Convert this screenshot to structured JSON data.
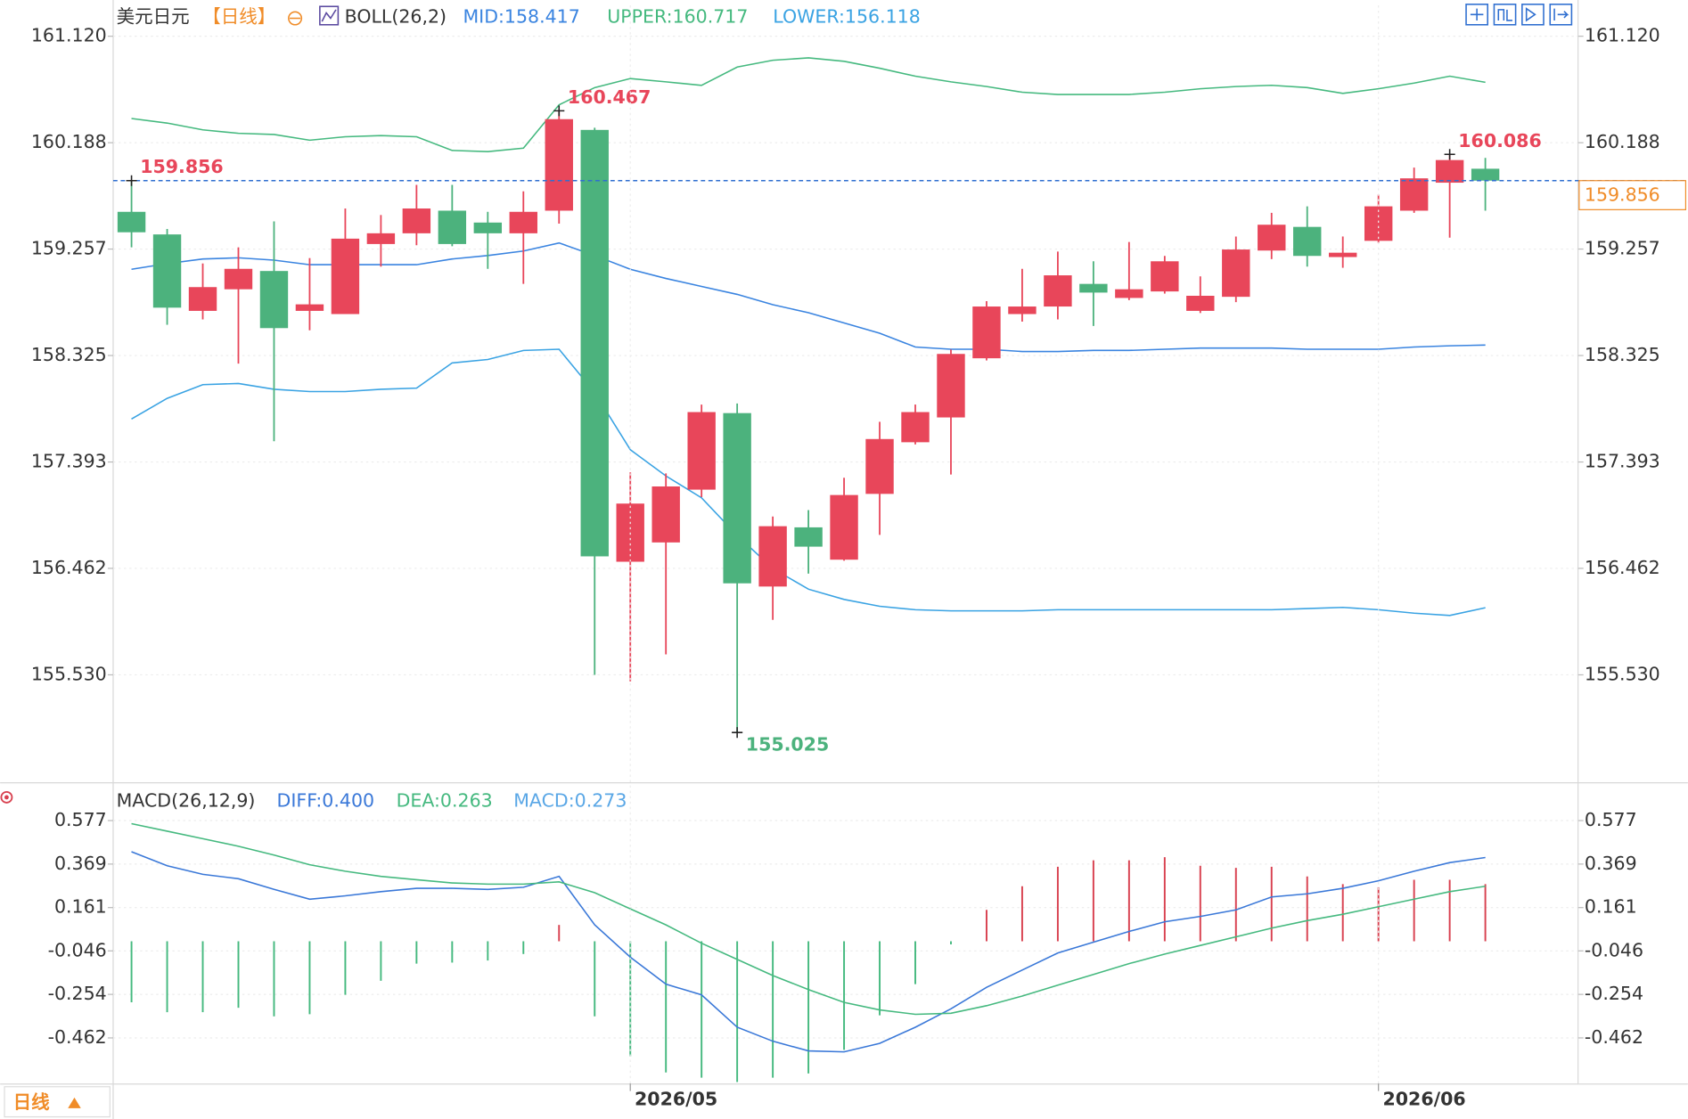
{
  "chart_data": [
    {
      "type": "candlestick",
      "title": "美元日元",
      "period": "【日线】",
      "indicator": "BOLL(26,2)",
      "up_color": "#e8465a",
      "down_color": "#4cb27d",
      "open": [
        159.583,
        159.385,
        158.716,
        158.905,
        159.065,
        158.716,
        158.688,
        159.301,
        159.395,
        159.593,
        159.489,
        159.395,
        159.593,
        160.3,
        156.52,
        156.689,
        157.151,
        157.821,
        156.303,
        156.821,
        156.538,
        157.114,
        157.566,
        157.783,
        158.301,
        158.688,
        158.754,
        158.952,
        158.829,
        158.886,
        158.716,
        158.839,
        159.244,
        159.451,
        159.187,
        159.329,
        159.593,
        159.838,
        159.96
      ],
      "high": [
        159.856,
        159.433,
        159.131,
        159.272,
        159.499,
        159.178,
        159.612,
        159.555,
        159.819,
        159.819,
        159.583,
        159.762,
        160.467,
        160.319,
        157.302,
        157.293,
        157.896,
        157.905,
        156.916,
        156.972,
        157.255,
        157.745,
        157.896,
        158.377,
        158.801,
        159.084,
        159.235,
        159.15,
        159.319,
        159.197,
        159.018,
        159.367,
        159.574,
        159.631,
        159.367,
        159.734,
        159.97,
        160.086,
        160.055
      ],
      "low": [
        159.272,
        158.594,
        158.641,
        158.254,
        157.575,
        158.546,
        158.688,
        159.103,
        159.291,
        159.282,
        159.084,
        158.952,
        159.48,
        155.53,
        155.473,
        155.709,
        157.085,
        155.025,
        156.011,
        156.416,
        156.529,
        156.755,
        157.547,
        157.283,
        158.282,
        158.622,
        158.641,
        158.584,
        158.81,
        158.867,
        158.697,
        158.792,
        159.169,
        159.103,
        159.093,
        159.31,
        159.574,
        159.357,
        159.593
      ],
      "close": [
        159.404,
        158.744,
        158.924,
        159.084,
        158.565,
        158.773,
        159.348,
        159.395,
        159.612,
        159.301,
        159.395,
        159.583,
        160.394,
        156.567,
        157.029,
        157.179,
        157.83,
        156.331,
        156.831,
        156.652,
        157.104,
        157.594,
        157.83,
        158.339,
        158.754,
        158.754,
        159.027,
        158.876,
        158.905,
        159.15,
        158.848,
        159.253,
        159.47,
        159.197,
        159.225,
        159.631,
        159.876,
        160.036,
        159.856
      ],
      "series": [
        {
          "name": "MID:158.417",
          "color": "#3a84e0",
          "values": [
            159.08,
            159.13,
            159.17,
            159.18,
            159.16,
            159.12,
            159.12,
            159.12,
            159.12,
            159.17,
            159.2,
            159.24,
            159.31,
            159.2,
            159.08,
            159.0,
            158.93,
            158.86,
            158.77,
            158.7,
            158.61,
            158.52,
            158.4,
            158.38,
            158.38,
            158.36,
            158.36,
            158.37,
            158.37,
            158.38,
            158.39,
            158.39,
            158.39,
            158.38,
            158.38,
            158.38,
            158.4,
            158.41,
            158.417
          ]
        },
        {
          "name": "UPPER:160.717",
          "color": "#45b97f",
          "values": [
            160.4,
            160.36,
            160.3,
            160.27,
            160.26,
            160.21,
            160.24,
            160.25,
            160.24,
            160.12,
            160.11,
            160.14,
            160.52,
            160.67,
            160.75,
            160.72,
            160.69,
            160.85,
            160.91,
            160.93,
            160.9,
            160.84,
            160.77,
            160.72,
            160.68,
            160.63,
            160.61,
            160.61,
            160.61,
            160.63,
            160.66,
            160.68,
            160.69,
            160.67,
            160.62,
            160.66,
            160.71,
            160.77,
            160.717
          ]
        },
        {
          "name": "LOWER:156.118",
          "color": "#3aa3e3",
          "values": [
            157.77,
            157.95,
            158.07,
            158.08,
            158.03,
            158.01,
            158.01,
            158.03,
            158.04,
            158.26,
            158.29,
            158.37,
            158.38,
            158.0,
            157.5,
            157.27,
            157.08,
            156.75,
            156.46,
            156.28,
            156.19,
            156.13,
            156.1,
            156.09,
            156.09,
            156.09,
            156.1,
            156.1,
            156.1,
            156.1,
            156.1,
            156.1,
            156.1,
            156.11,
            156.12,
            156.1,
            156.07,
            156.05,
            156.118
          ]
        }
      ],
      "ylim": [
        154.59,
        161.39
      ],
      "yticks": [
        {
          "value": 161.12,
          "label": "161.120"
        },
        160.188,
        159.257,
        158.325,
        157.393,
        156.462,
        {
          "value": 155.53,
          "label": "155.530"
        }
      ],
      "grid": true,
      "period_button": "日线"
    },
    {
      "type": "combo",
      "title": "MACD(26,12,9)",
      "up_color": "#d8404f",
      "down_color": "#45b97f",
      "categories": [
        null,
        null,
        null,
        null,
        null,
        null,
        null,
        null,
        null,
        null,
        null,
        null,
        null,
        null,
        "2026/05",
        null,
        null,
        null,
        null,
        null,
        null,
        null,
        null,
        null,
        null,
        null,
        null,
        null,
        null,
        null,
        null,
        null,
        null,
        null,
        null,
        "2026/06",
        null,
        null,
        null
      ],
      "series": [
        {
          "name": "DIFF:0.400",
          "color": "#3a78d8",
          "values": [
            0.428,
            0.361,
            0.32,
            0.299,
            0.248,
            0.201,
            0.217,
            0.237,
            0.253,
            0.253,
            0.248,
            0.258,
            0.31,
            0.078,
            -0.076,
            -0.205,
            -0.256,
            -0.411,
            -0.478,
            -0.524,
            -0.529,
            -0.488,
            -0.411,
            -0.323,
            -0.22,
            -0.138,
            -0.056,
            -0.004,
            0.047,
            0.093,
            0.119,
            0.15,
            0.212,
            0.227,
            0.253,
            0.289,
            0.335,
            0.376,
            0.4
          ]
        },
        {
          "name": "DEA:0.263",
          "color": "#45b97f",
          "values": [
            0.562,
            0.526,
            0.49,
            0.454,
            0.412,
            0.366,
            0.335,
            0.31,
            0.294,
            0.279,
            0.273,
            0.273,
            0.284,
            0.232,
            0.155,
            0.078,
            -0.009,
            -0.087,
            -0.164,
            -0.231,
            -0.292,
            -0.328,
            -0.349,
            -0.344,
            -0.308,
            -0.262,
            -0.21,
            -0.159,
            -0.107,
            -0.061,
            -0.02,
            0.021,
            0.063,
            0.099,
            0.129,
            0.165,
            0.201,
            0.237,
            0.263
          ]
        },
        {
          "name": "MACD:0.273",
          "color": "#5aa7e6",
          "kind": "bar",
          "values": [
            -0.292,
            -0.339,
            -0.339,
            -0.318,
            -0.359,
            -0.349,
            -0.256,
            -0.189,
            -0.107,
            -0.102,
            -0.092,
            -0.061,
            0.078,
            -0.359,
            -0.55,
            -0.627,
            -0.652,
            -0.673,
            -0.652,
            -0.632,
            -0.519,
            -0.354,
            -0.205,
            -0.015,
            0.15,
            0.263,
            0.356,
            0.387,
            0.387,
            0.402,
            0.361,
            0.351,
            0.356,
            0.31,
            0.273,
            0.258,
            0.294,
            0.294,
            0.273
          ]
        }
      ],
      "ylim": [
        -0.68,
        0.75
      ],
      "yticks": [
        0.577,
        0.369,
        0.161,
        -0.046,
        -0.254,
        -0.462
      ],
      "grid": true
    }
  ]
}
